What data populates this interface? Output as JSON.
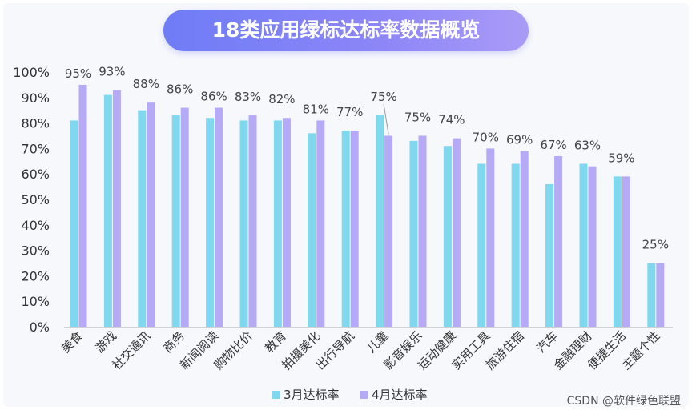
{
  "chart_data": {
    "type": "bar",
    "title": "18类应用绿标达标率数据概览",
    "categories": [
      "美食",
      "游戏",
      "社交通讯",
      "商务",
      "新闻阅读",
      "购物比价",
      "教育",
      "拍摄美化",
      "出行导航",
      "儿童",
      "影音娱乐",
      "运动健康",
      "实用工具",
      "旅游住宿",
      "汽车",
      "金融理财",
      "便捷生活",
      "主题个性"
    ],
    "series": [
      {
        "name": "3月达标率",
        "color": "#7fd8ee",
        "values": [
          81,
          91,
          85,
          83,
          82,
          81,
          81,
          76,
          77,
          83,
          73,
          71,
          64,
          64,
          56,
          64,
          59,
          25
        ]
      },
      {
        "name": "4月达标率",
        "color": "#b6a9f5",
        "values": [
          95,
          93,
          88,
          86,
          86,
          83,
          82,
          81,
          77,
          75,
          75,
          74,
          70,
          69,
          67,
          63,
          59,
          25
        ]
      }
    ],
    "data_labels": [
      "95%",
      "93%",
      "88%",
      "86%",
      "86%",
      "83%",
      "82%",
      "81%",
      "77%",
      "75%",
      "75%",
      "74%",
      "70%",
      "69%",
      "67%",
      "63%",
      "59%",
      "25%"
    ],
    "yticks": [
      "0%",
      "10%",
      "20%",
      "30%",
      "40%",
      "50%",
      "60%",
      "70%",
      "80%",
      "90%",
      "100%"
    ],
    "ylim": [
      0,
      100
    ],
    "xlabel": "",
    "ylabel": "",
    "grid": false,
    "legend": "bottom"
  },
  "watermark": "CSDN @软件绿色联盟"
}
